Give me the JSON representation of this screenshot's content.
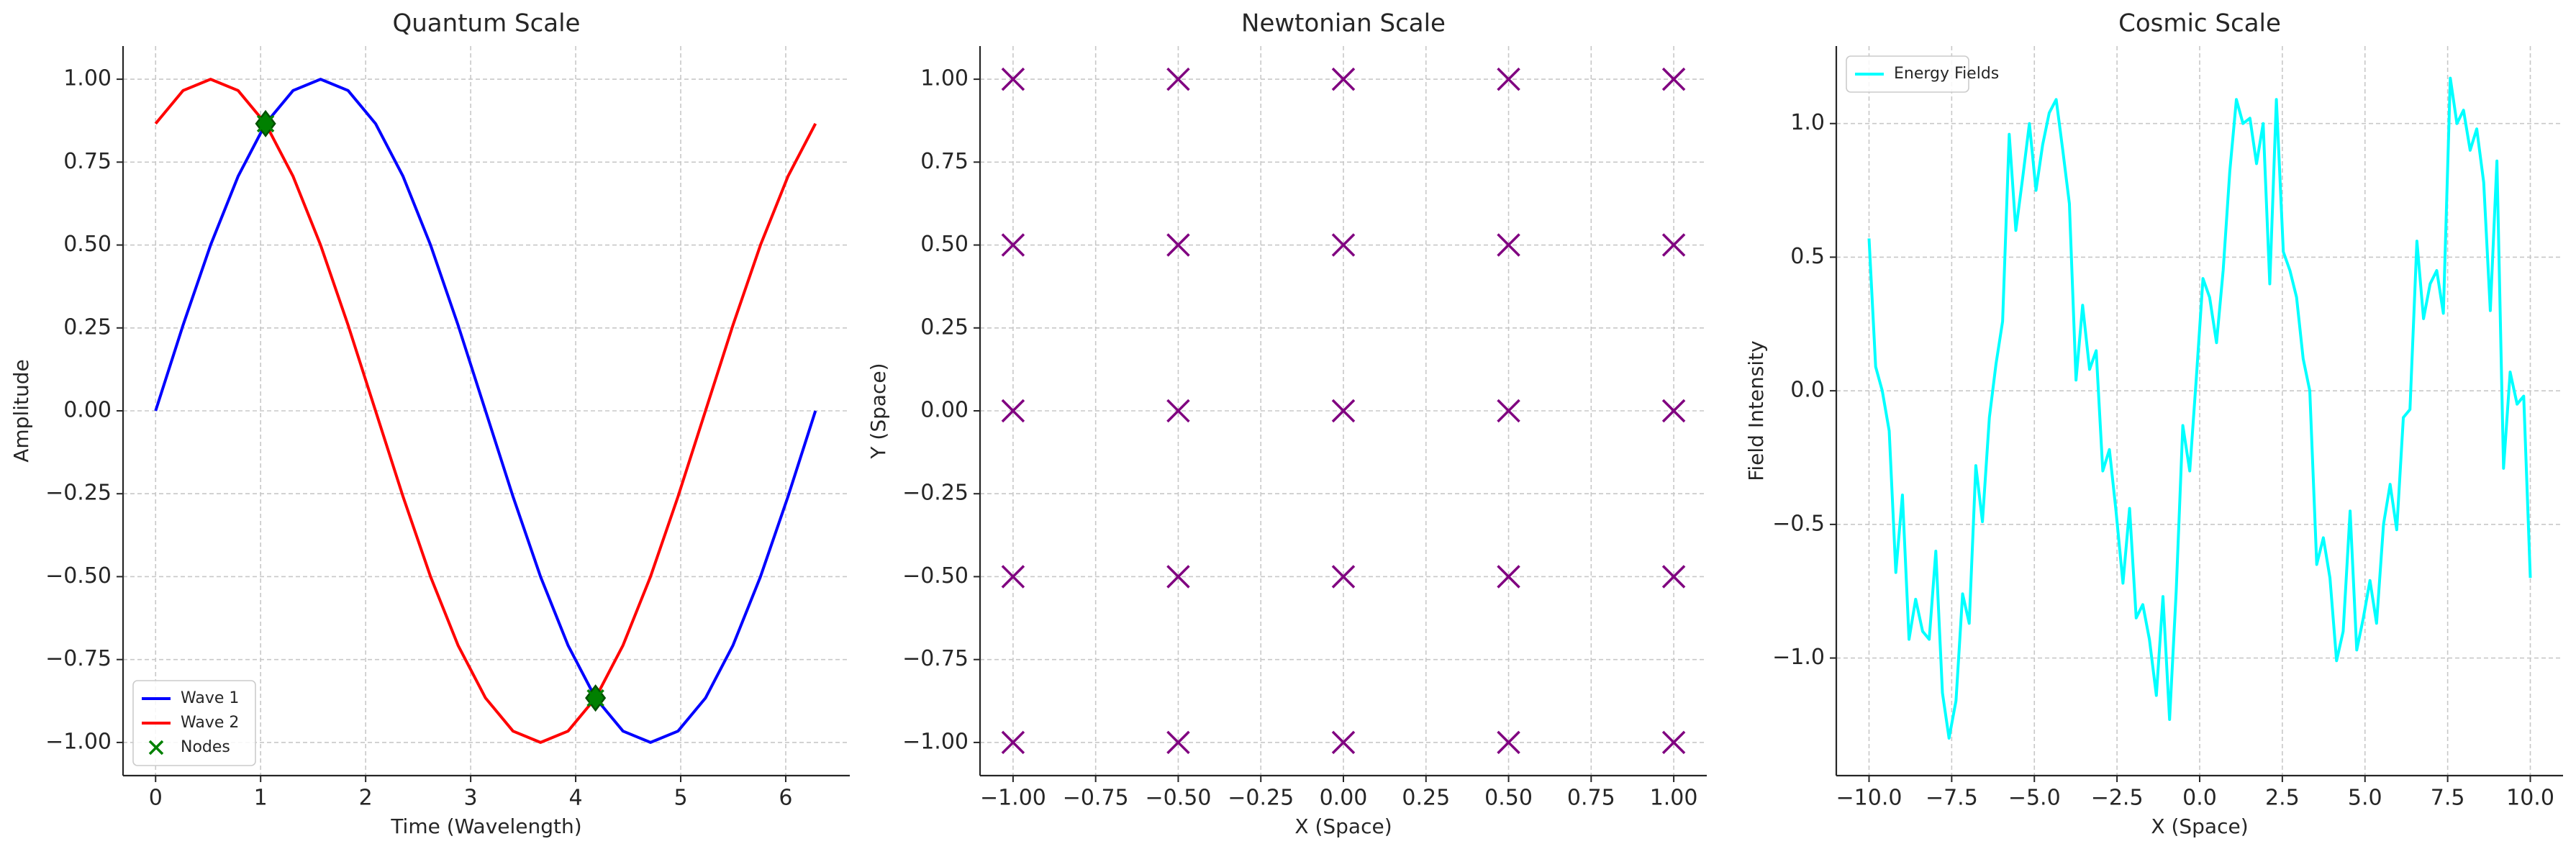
{
  "chart_data": [
    {
      "type": "line",
      "title": "Quantum Scale",
      "xlabel": "Time (Wavelength)",
      "ylabel": "Amplitude",
      "x": [
        0,
        0.2618,
        0.5236,
        0.7854,
        1.0472,
        1.309,
        1.5708,
        1.8326,
        2.0944,
        2.3562,
        2.618,
        2.8798,
        3.1416,
        3.4034,
        3.6652,
        3.927,
        4.1888,
        4.4506,
        4.7124,
        4.9742,
        5.236,
        5.4978,
        5.7596,
        6.0214,
        6.2832
      ],
      "series": [
        {
          "name": "Wave 1",
          "color": "#0000ff",
          "values": [
            0,
            0.2588,
            0.5,
            0.7071,
            0.866,
            0.9659,
            1,
            0.9659,
            0.866,
            0.7071,
            0.5,
            0.2588,
            0,
            -0.2588,
            -0.5,
            -0.7071,
            -0.866,
            -0.9659,
            -1,
            -0.9659,
            -0.866,
            -0.7071,
            -0.5,
            -0.2588,
            0
          ]
        },
        {
          "name": "Wave 2",
          "color": "#ff0000",
          "values": [
            0.866,
            0.9659,
            1,
            0.9659,
            0.866,
            0.7071,
            0.5,
            0.2588,
            0,
            -0.2588,
            -0.5,
            -0.7071,
            -0.866,
            -0.9659,
            -1,
            -0.9659,
            -0.866,
            -0.7071,
            -0.5,
            -0.2588,
            0,
            0.2588,
            0.5,
            0.7071,
            0.866
          ]
        },
        {
          "name": "Nodes",
          "type": "scatter",
          "color": "#008000",
          "x": [
            1.0472,
            4.1888
          ],
          "values": [
            0.866,
            -0.866
          ]
        }
      ],
      "xlim": [
        -0.31,
        6.61
      ],
      "xticks": [
        0,
        1,
        2,
        3,
        4,
        5,
        6
      ],
      "ylim": [
        -1.1,
        1.1
      ],
      "yticks": [
        {
          "value": -1,
          "label": "−1.00"
        },
        {
          "value": -0.75,
          "label": "−0.75"
        },
        {
          "value": -0.5,
          "label": "−0.50"
        },
        {
          "value": -0.25,
          "label": "−0.25"
        },
        {
          "value": 0,
          "label": "0.00"
        },
        {
          "value": 0.25,
          "label": "0.25"
        },
        {
          "value": 0.5,
          "label": "0.50"
        },
        {
          "value": 0.75,
          "label": "0.75"
        },
        {
          "value": 1,
          "label": "1.00"
        }
      ],
      "grid": true,
      "legend": "lower left"
    },
    {
      "type": "scatter",
      "title": "Newtonian Scale",
      "xlabel": "X (Space)",
      "ylabel": "Y (Space)",
      "x": [
        -1,
        -0.5,
        0,
        0.5,
        1,
        -1,
        -0.5,
        0,
        0.5,
        1,
        -1,
        -0.5,
        0,
        0.5,
        1,
        -1,
        -0.5,
        0,
        0.5,
        1,
        -1,
        -0.5,
        0,
        0.5,
        1
      ],
      "series": [
        {
          "color": "#800080",
          "values": [
            -1,
            -1,
            -1,
            -1,
            -1,
            -0.5,
            -0.5,
            -0.5,
            -0.5,
            -0.5,
            0,
            0,
            0,
            0,
            0,
            0.5,
            0.5,
            0.5,
            0.5,
            0.5,
            1,
            1,
            1,
            1,
            1
          ]
        }
      ],
      "xlim": [
        -1.1,
        1.1
      ],
      "xticks": [
        {
          "value": -1,
          "label": "−1.00"
        },
        {
          "value": -0.75,
          "label": "−0.75"
        },
        {
          "value": -0.5,
          "label": "−0.50"
        },
        {
          "value": -0.25,
          "label": "−0.25"
        },
        {
          "value": 0,
          "label": "0.00"
        },
        {
          "value": 0.25,
          "label": "0.25"
        },
        {
          "value": 0.5,
          "label": "0.50"
        },
        {
          "value": 0.75,
          "label": "0.75"
        },
        {
          "value": 1,
          "label": "1.00"
        }
      ],
      "ylim": [
        -1.1,
        1.1
      ],
      "yticks": [
        {
          "value": -1,
          "label": "−1.00"
        },
        {
          "value": -0.75,
          "label": "−0.75"
        },
        {
          "value": -0.5,
          "label": "−0.50"
        },
        {
          "value": -0.25,
          "label": "−0.25"
        },
        {
          "value": 0,
          "label": "0.00"
        },
        {
          "value": 0.25,
          "label": "0.25"
        },
        {
          "value": 0.5,
          "label": "0.50"
        },
        {
          "value": 0.75,
          "label": "0.75"
        },
        {
          "value": 1,
          "label": "1.00"
        }
      ],
      "grid": true
    },
    {
      "type": "line",
      "title": "Cosmic Scale",
      "xlabel": "X (Space)",
      "ylabel": "Field Intensity",
      "x": [
        -10,
        -9.8,
        -9.6,
        -9.39,
        -9.19,
        -8.99,
        -8.79,
        -8.59,
        -8.38,
        -8.18,
        -7.98,
        -7.78,
        -7.58,
        -7.37,
        -7.17,
        -6.97,
        -6.77,
        -6.57,
        -6.36,
        -6.16,
        -5.96,
        -5.76,
        -5.56,
        -5.35,
        -5.15,
        -4.95,
        -4.75,
        -4.55,
        -4.34,
        -4.14,
        -3.94,
        -3.74,
        -3.54,
        -3.33,
        -3.13,
        -2.93,
        -2.73,
        -2.53,
        -2.32,
        -2.12,
        -1.92,
        -1.72,
        -1.52,
        -1.31,
        -1.11,
        -0.91,
        -0.71,
        -0.51,
        -0.3,
        -0.1,
        0.1,
        0.3,
        0.51,
        0.71,
        0.91,
        1.11,
        1.31,
        1.52,
        1.72,
        1.92,
        2.12,
        2.32,
        2.53,
        2.73,
        2.93,
        3.13,
        3.33,
        3.54,
        3.74,
        3.94,
        4.14,
        4.34,
        4.55,
        4.75,
        4.95,
        5.15,
        5.35,
        5.56,
        5.76,
        5.96,
        6.16,
        6.36,
        6.57,
        6.77,
        6.97,
        7.17,
        7.37,
        7.58,
        7.78,
        7.98,
        8.18,
        8.38,
        8.59,
        8.79,
        8.99,
        9.19,
        9.39,
        9.6,
        9.8,
        10
      ],
      "series": [
        {
          "name": "Energy Fields",
          "color": "#00ffff",
          "values": [
            0.57,
            0.09,
            0.0,
            -0.15,
            -0.68,
            -0.39,
            -0.93,
            -0.78,
            -0.9,
            -0.93,
            -0.6,
            -1.13,
            -1.3,
            -1.16,
            -0.76,
            -0.87,
            -0.28,
            -0.49,
            -0.1,
            0.1,
            0.26,
            0.96,
            0.6,
            0.8,
            1.0,
            0.75,
            0.92,
            1.04,
            1.09,
            0.9,
            0.7,
            0.04,
            0.32,
            0.08,
            0.15,
            -0.3,
            -0.22,
            -0.45,
            -0.72,
            -0.44,
            -0.85,
            -0.8,
            -0.93,
            -1.14,
            -0.77,
            -1.23,
            -0.75,
            -0.13,
            -0.3,
            0.05,
            0.42,
            0.35,
            0.18,
            0.45,
            0.82,
            1.09,
            1.0,
            1.02,
            0.85,
            1.0,
            0.4,
            1.09,
            0.52,
            0.45,
            0.35,
            0.12,
            0.0,
            -0.65,
            -0.55,
            -0.7,
            -1.01,
            -0.9,
            -0.45,
            -0.97,
            -0.85,
            -0.71,
            -0.87,
            -0.5,
            -0.35,
            -0.52,
            -0.1,
            -0.07,
            0.56,
            0.27,
            0.4,
            0.45,
            0.29,
            1.17,
            1.0,
            1.05,
            0.9,
            0.98,
            0.78,
            0.3,
            0.86,
            -0.29,
            0.07,
            -0.05,
            -0.02,
            -0.7
          ]
        }
      ],
      "xlim": [
        -10.99,
        10.99
      ],
      "xticks": [
        {
          "value": -10,
          "label": "−10.0"
        },
        {
          "value": -7.5,
          "label": "−7.5"
        },
        {
          "value": -5,
          "label": "−5.0"
        },
        {
          "value": -2.5,
          "label": "−2.5"
        },
        {
          "value": 0,
          "label": "0.0"
        },
        {
          "value": 2.5,
          "label": "2.5"
        },
        {
          "value": 5,
          "label": "5.0"
        },
        {
          "value": 7.5,
          "label": "7.5"
        },
        {
          "value": 10,
          "label": "10.0"
        }
      ],
      "ylim": [
        -1.44,
        1.29
      ],
      "yticks": [
        {
          "value": -1,
          "label": "−1.0"
        },
        {
          "value": -0.5,
          "label": "−0.5"
        },
        {
          "value": 0,
          "label": "0.0"
        },
        {
          "value": 0.5,
          "label": "0.5"
        },
        {
          "value": 1,
          "label": "1.0"
        }
      ],
      "grid": true,
      "legend": "upper left"
    }
  ]
}
